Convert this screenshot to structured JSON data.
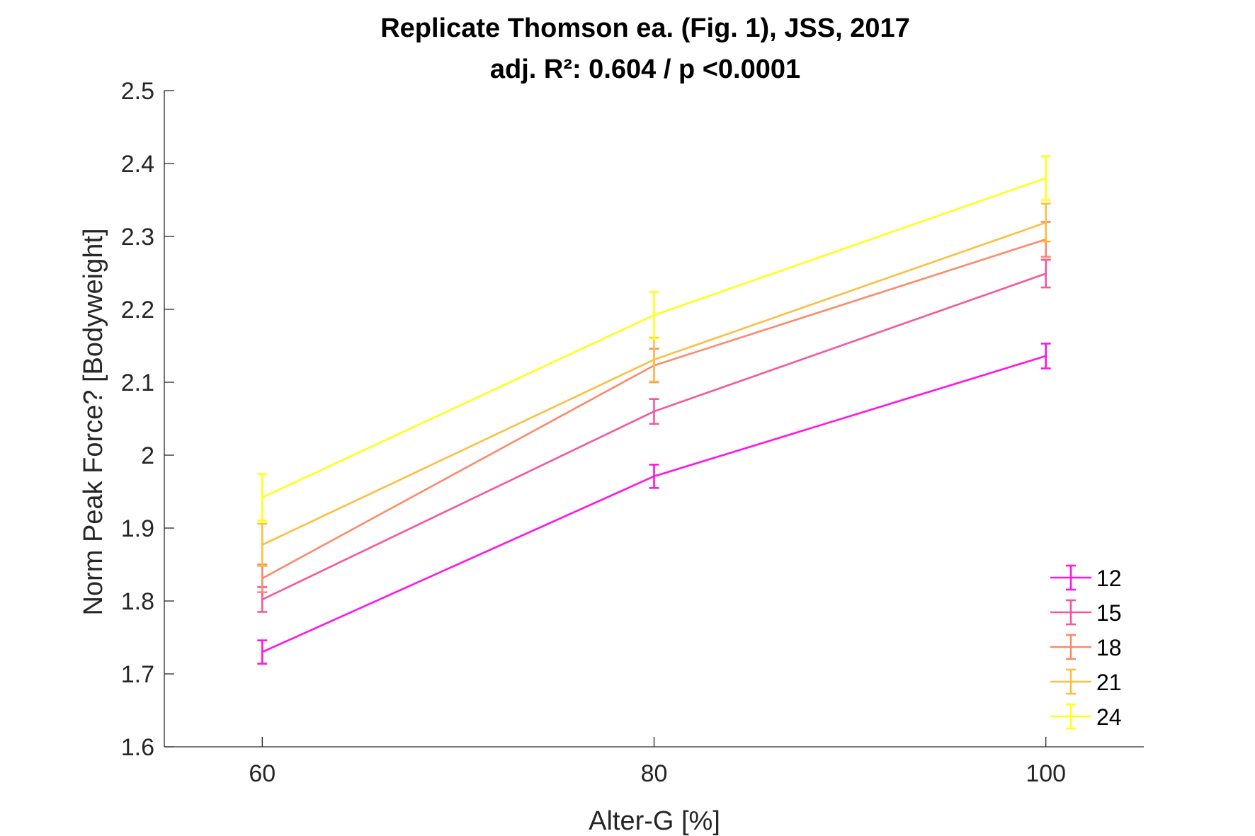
{
  "chart_data": {
    "type": "line",
    "title": "Replicate Thomson ea. (Fig. 1), JSS, 2017",
    "subtitle": "adj. R²: 0.604 / p <0.0001",
    "xlabel": "Alter-G [%]",
    "ylabel": "Norm Peak Force? [Bodyweight]",
    "x": [
      60,
      80,
      100
    ],
    "xlim": [
      55,
      105
    ],
    "ylim": [
      1.6,
      2.5
    ],
    "xticks": [
      "60",
      "80",
      "100"
    ],
    "yticks": [
      "1.6",
      "1.7",
      "1.8",
      "1.9",
      "2",
      "2.1",
      "2.2",
      "2.3",
      "2.4",
      "2.5"
    ],
    "grid": false,
    "legend_position": "bottom-right",
    "error_bars": true,
    "series": [
      {
        "name": "12",
        "color": "#ff14e6",
        "values": [
          1.73,
          1.971,
          2.136
        ],
        "errors": [
          0.016,
          0.016,
          0.017
        ]
      },
      {
        "name": "15",
        "color": "#f6569c",
        "values": [
          1.802,
          2.06,
          2.249
        ],
        "errors": [
          0.017,
          0.017,
          0.019
        ]
      },
      {
        "name": "18",
        "color": "#fb8a6c",
        "values": [
          1.831,
          2.123,
          2.296
        ],
        "errors": [
          0.019,
          0.023,
          0.024
        ]
      },
      {
        "name": "21",
        "color": "#fbbf41",
        "values": [
          1.877,
          2.131,
          2.319
        ],
        "errors": [
          0.029,
          0.03,
          0.026
        ]
      },
      {
        "name": "24",
        "color": "#ffff16",
        "values": [
          1.942,
          2.192,
          2.38
        ],
        "errors": [
          0.032,
          0.032,
          0.03
        ]
      }
    ]
  }
}
